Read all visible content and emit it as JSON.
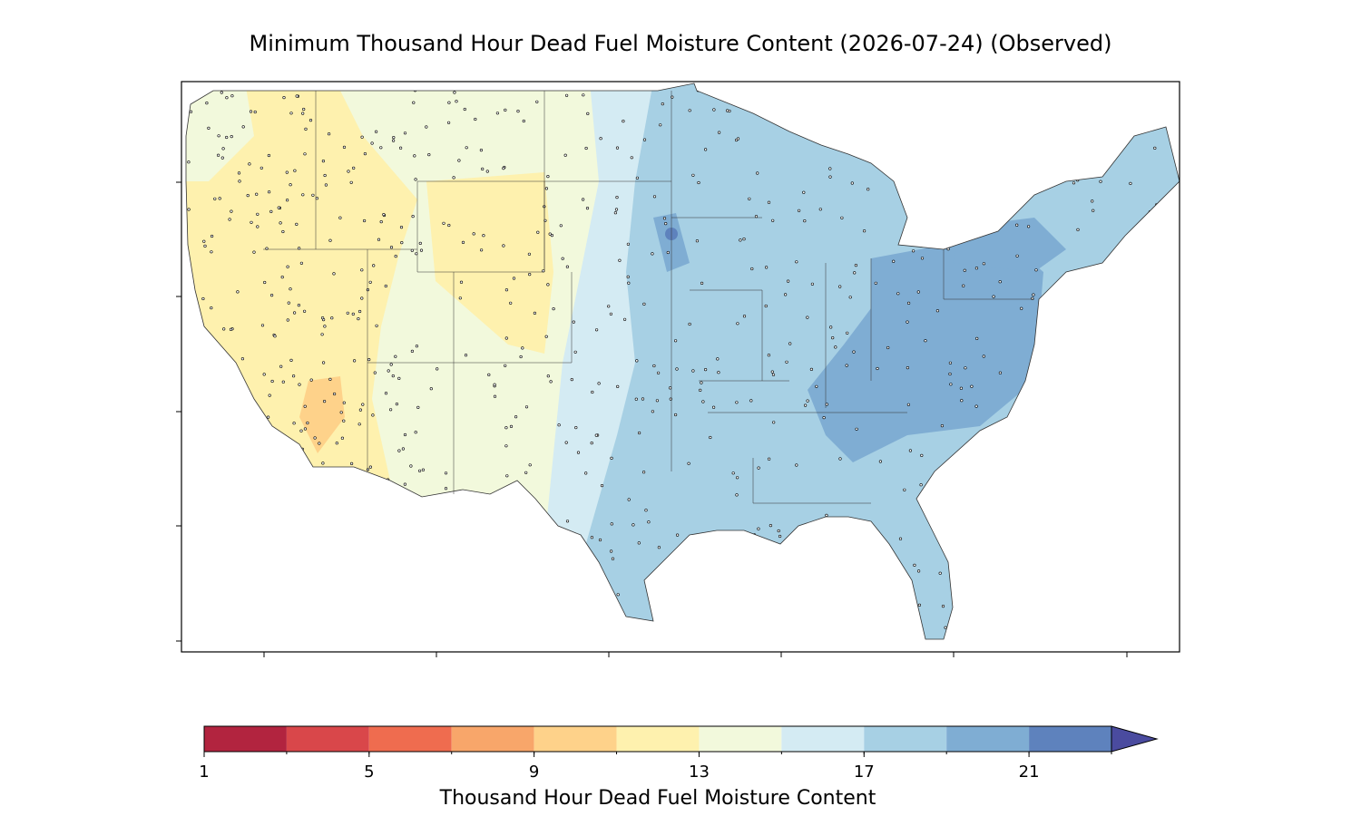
{
  "title": "Minimum Thousand Hour Dead Fuel Moisture Content (2026-07-24) (Observed)",
  "colorbar": {
    "label": "Thousand Hour Dead Fuel Moisture Content",
    "boundaries": [
      1,
      3,
      5,
      7,
      9,
      11,
      13,
      15,
      17,
      19,
      21,
      23
    ],
    "colors": [
      "#b2243f",
      "#d9474a",
      "#ef6c4f",
      "#f8a66a",
      "#fed28a",
      "#fef1ae",
      "#f2f9dc",
      "#d4ebf3",
      "#a7d0e4",
      "#7fadd3",
      "#5e82bd"
    ],
    "extend": "max",
    "extend_color": "#4a4b9f",
    "ticks": [
      1,
      5,
      9,
      13,
      17,
      21
    ]
  }
}
